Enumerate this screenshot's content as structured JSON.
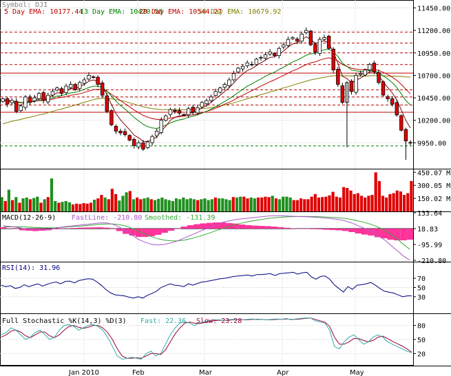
{
  "chart_data": [
    {
      "type": "candlestick",
      "symbol": "Symbol: DJI",
      "legend": [
        {
          "label": "5 Day EMA: 10177.44",
          "color": "#c00000"
        },
        {
          "label": "13 Day EMA: 10420.58",
          "color": "#008000"
        },
        {
          "label": "20 Day EMA: 10544.27",
          "color": "#c00000"
        },
        {
          "label": "50 Day EMA: 10679.92",
          "color": "#808000"
        }
      ],
      "y_ticks": [
        "11450.00",
        "11200.00",
        "10950.00",
        "10700.00",
        "10450.00",
        "10200.00",
        "9950.00"
      ],
      "ylim": [
        9700,
        11500
      ],
      "x_labels": [
        "Jan 2010",
        "Feb",
        "Mar",
        "Apr",
        "May"
      ],
      "support_resistance_red_solid": [
        10725,
        10290
      ],
      "support_resistance_red_dashed": [
        11180,
        11060,
        10950,
        10820,
        10540,
        10460,
        10370
      ],
      "support_green_dashed": [
        9915
      ],
      "closes": [
        10440,
        10380,
        10420,
        10300,
        10360,
        10460,
        10400,
        10450,
        10500,
        10420,
        10480,
        10520,
        10560,
        10500,
        10580,
        10600,
        10540,
        10620,
        10650,
        10700,
        10680,
        10600,
        10480,
        10300,
        10150,
        10080,
        10060,
        10040,
        9980,
        9920,
        9950,
        9880,
        9960,
        10020,
        10080,
        10200,
        10250,
        10320,
        10300,
        10280,
        10260,
        10330,
        10290,
        10340,
        10400,
        10420,
        10460,
        10520,
        10560,
        10600,
        10650,
        10720,
        10780,
        10800,
        10840,
        10820,
        10880,
        10900,
        10930,
        10960,
        10920,
        11000,
        11040,
        11100,
        11120,
        11080,
        11160,
        11200,
        11040,
        10960,
        11100,
        11120,
        11000,
        10760,
        10600,
        10400,
        10620,
        10520,
        10700,
        10720,
        10760,
        10820,
        10740,
        10620,
        10480,
        10440,
        10380,
        10260,
        10090,
        9970,
        9950
      ],
      "ema5": [
        10430,
        10410,
        10410,
        10375,
        10370,
        10400,
        10400,
        10415,
        10445,
        10435,
        10450,
        10475,
        10505,
        10505,
        10530,
        10555,
        10550,
        10575,
        10600,
        10635,
        10650,
        10630,
        10580,
        10485,
        10375,
        10275,
        10205,
        10150,
        10095,
        10035,
        10005,
        9965,
        9965,
        9985,
        10015,
        10080,
        10135,
        10200,
        10235,
        10250,
        10255,
        10280,
        10285,
        10305,
        10340,
        10365,
        10400,
        10440,
        10480,
        10520,
        10565,
        10615,
        10670,
        10715,
        10755,
        10775,
        10810,
        10840,
        10870,
        10900,
        10905,
        10935,
        10970,
        11015,
        11050,
        11060,
        11095,
        11130,
        11100,
        11055,
        11070,
        11085,
        11055,
        10955,
        10835,
        10690,
        10665,
        10615,
        10645,
        10670,
        10700,
        10740,
        10740,
        10700,
        10625,
        10565,
        10505,
        10425,
        10315,
        10200,
        10115
      ],
      "ema13": [
        10430,
        10420,
        10420,
        10400,
        10395,
        10405,
        10405,
        10410,
        10425,
        10425,
        10435,
        10450,
        10470,
        10475,
        10490,
        10505,
        10510,
        10525,
        10545,
        10565,
        10580,
        10580,
        10565,
        10525,
        10470,
        10415,
        10365,
        10325,
        10280,
        10230,
        10195,
        10155,
        10130,
        10115,
        10110,
        10125,
        10145,
        10170,
        10190,
        10205,
        10215,
        10235,
        10245,
        10260,
        10280,
        10300,
        10325,
        10350,
        10380,
        10410,
        10440,
        10475,
        10510,
        10545,
        10580,
        10605,
        10635,
        10660,
        10690,
        10715,
        10735,
        10765,
        10790,
        10820,
        10850,
        10870,
        10895,
        10925,
        10940,
        10945,
        10965,
        10985,
        10990,
        10960,
        10910,
        10835,
        10800,
        10760,
        10750,
        10745,
        10745,
        10755,
        10750,
        10730,
        10695,
        10660,
        10620,
        10565,
        10495,
        10420,
        10370
      ],
      "ema20": [
        10420,
        10415,
        10415,
        10405,
        10400,
        10405,
        10405,
        10410,
        10420,
        10420,
        10425,
        10435,
        10450,
        10455,
        10465,
        10480,
        10485,
        10495,
        10510,
        10525,
        10540,
        10545,
        10540,
        10520,
        10490,
        10455,
        10420,
        10385,
        10350,
        10315,
        10285,
        10255,
        10235,
        10220,
        10210,
        10210,
        10215,
        10225,
        10235,
        10240,
        10245,
        10255,
        10260,
        10270,
        10285,
        10300,
        10315,
        10335,
        10355,
        10380,
        10400,
        10425,
        10455,
        10480,
        10505,
        10530,
        10555,
        10580,
        10605,
        10630,
        10650,
        10675,
        10700,
        10725,
        10750,
        10770,
        10795,
        10820,
        10840,
        10850,
        10870,
        10885,
        10895,
        10885,
        10860,
        10820,
        10800,
        10780,
        10770,
        10765,
        10765,
        10770,
        10765,
        10755,
        10735,
        10710,
        10680,
        10645,
        10600,
        10545,
        10495
      ],
      "ema50": [
        10160,
        10175,
        10190,
        10200,
        10210,
        10225,
        10235,
        10245,
        10260,
        10270,
        10285,
        10300,
        10315,
        10325,
        10340,
        10355,
        10370,
        10385,
        10400,
        10415,
        10430,
        10440,
        10445,
        10445,
        10440,
        10430,
        10420,
        10410,
        10395,
        10380,
        10365,
        10350,
        10340,
        10330,
        10325,
        10320,
        10318,
        10318,
        10318,
        10318,
        10318,
        10320,
        10322,
        10325,
        10330,
        10335,
        10342,
        10350,
        10360,
        10370,
        10382,
        10395,
        10410,
        10425,
        10440,
        10455,
        10470,
        10485,
        10500,
        10515,
        10530,
        10545,
        10560,
        10575,
        10590,
        10605,
        10620,
        10635,
        10650,
        10660,
        10670,
        10680,
        10688,
        10695,
        10698,
        10696,
        10694,
        10692,
        10692,
        10692,
        10693,
        10695,
        10696,
        10696,
        10694,
        10692,
        10690,
        10688,
        10686,
        10683,
        10680
      ]
    },
    {
      "type": "bar",
      "name": "Volume",
      "y_ticks": [
        "450.07 M",
        "300.05 M",
        "150.02 M"
      ],
      "ylim": [
        0,
        460
      ],
      "values": [
        165,
        120,
        250,
        130,
        165,
        100,
        150,
        160,
        140,
        155,
        170,
        100,
        140,
        165,
        380,
        120,
        100,
        110,
        120,
        105,
        80,
        90,
        85,
        95,
        90,
        100,
        135,
        150,
        190,
        160,
        140,
        260,
        200,
        125,
        180,
        220,
        235,
        140,
        160,
        140,
        150,
        160,
        140,
        130,
        145,
        160,
        140,
        130,
        120,
        150,
        140,
        160,
        140,
        150,
        140,
        130,
        140,
        150,
        130,
        140,
        160,
        150,
        150,
        140,
        130,
        165,
        160,
        170,
        170,
        150,
        160,
        150,
        160,
        160,
        170,
        165,
        180,
        150,
        140,
        170,
        170,
        160,
        130,
        130,
        150,
        140,
        140,
        170,
        200,
        160,
        165,
        170,
        185,
        225,
        170,
        160,
        280,
        270,
        240,
        200,
        210,
        180,
        160,
        180,
        190,
        450,
        350,
        180,
        160,
        200,
        210,
        240,
        230,
        190,
        210,
        350
      ],
      "up": [
        true,
        false,
        true,
        false,
        true,
        false,
        true,
        true,
        false,
        true,
        true,
        false,
        true,
        false,
        true,
        true,
        false,
        true,
        true,
        true,
        false,
        false,
        false,
        false,
        false,
        false,
        true,
        false,
        false,
        true,
        false,
        false,
        false,
        true,
        true,
        true,
        false,
        true,
        false,
        false,
        true,
        true,
        false,
        true,
        true,
        true,
        true,
        true,
        true,
        true,
        true,
        true,
        true,
        true,
        true,
        false,
        true,
        true,
        true,
        true,
        false,
        true,
        true,
        true,
        true,
        false,
        true,
        true,
        false,
        false,
        true,
        true,
        false,
        false,
        false,
        false,
        true,
        false,
        true,
        true,
        true,
        true,
        false,
        false,
        false,
        false,
        false,
        false,
        false,
        false,
        false,
        false,
        false,
        false,
        false,
        false,
        false,
        false,
        false,
        false,
        false,
        false,
        false,
        false,
        false,
        false,
        false,
        false,
        false,
        false,
        false,
        false,
        false,
        false,
        false,
        false
      ]
    },
    {
      "type": "line",
      "name": "MACD",
      "header": "MACD(12-26-9)",
      "fast_label": "FastLine: -210.80",
      "smooth_label": "Smoothed: -131.39",
      "y_ticks": [
        "133.64",
        "18.83",
        "-95.99",
        "-210.80"
      ],
      "ylim": [
        -210.8,
        133.64
      ],
      "fast": [
        40,
        35,
        30,
        20,
        15,
        10,
        10,
        12,
        20,
        30,
        35,
        40,
        45,
        50,
        55,
        60,
        60,
        50,
        30,
        0,
        -30,
        -60,
        -80,
        -95,
        -100,
        -95,
        -85,
        -70,
        -50,
        -30,
        -10,
        10,
        30,
        50,
        65,
        75,
        85,
        90,
        95,
        100,
        105,
        110,
        112,
        112,
        110,
        108,
        106,
        105,
        102,
        100,
        95,
        90,
        85,
        75,
        60,
        40,
        20,
        0,
        -30,
        -60,
        -100,
        -140,
        -180,
        -210
      ],
      "smooth": [
        30,
        32,
        33,
        32,
        30,
        28,
        25,
        24,
        25,
        28,
        32,
        35,
        38,
        42,
        46,
        50,
        53,
        53,
        48,
        38,
        20,
        0,
        -20,
        -40,
        -55,
        -65,
        -70,
        -70,
        -65,
        -55,
        -42,
        -28,
        -12,
        5,
        20,
        35,
        48,
        60,
        70,
        78,
        85,
        92,
        97,
        101,
        104,
        106,
        107,
        107,
        106,
        105,
        103,
        100,
        97,
        92,
        85,
        75,
        63,
        50,
        32,
        10,
        -20,
        -55,
        -95,
        -131
      ],
      "hist": [
        10,
        3,
        -3,
        -12,
        -15,
        -18,
        -15,
        -12,
        -5,
        2,
        3,
        5,
        7,
        8,
        9,
        10,
        7,
        -3,
        -18,
        -38,
        -50,
        -60,
        -60,
        -55,
        -45,
        -30,
        -15,
        0,
        15,
        25,
        32,
        38,
        42,
        45,
        45,
        40,
        37,
        30,
        25,
        22,
        20,
        18,
        15,
        11,
        6,
        2,
        -1,
        -2,
        -4,
        -5,
        -8,
        -10,
        -12,
        -17,
        -25,
        -35,
        -43,
        -50,
        -62,
        -70,
        -80,
        -85,
        -85,
        -80
      ]
    },
    {
      "type": "line",
      "name": "RSI",
      "header": "RSI(14): 31.96",
      "y_ticks": [
        "70",
        "50",
        "30"
      ],
      "ylim": [
        0,
        100
      ],
      "values": [
        55,
        52,
        54,
        48,
        50,
        56,
        52,
        55,
        58,
        53,
        57,
        60,
        62,
        58,
        63,
        64,
        60,
        65,
        67,
        69,
        68,
        62,
        54,
        45,
        38,
        34,
        33,
        32,
        29,
        27,
        30,
        27,
        33,
        37,
        42,
        50,
        54,
        58,
        55,
        54,
        52,
        58,
        55,
        59,
        62,
        63,
        65,
        67,
        69,
        70,
        72,
        74,
        75,
        76,
        77,
        75,
        78,
        78,
        79,
        80,
        76,
        80,
        81,
        82,
        83,
        79,
        82,
        83,
        73,
        68,
        74,
        75,
        68,
        56,
        48,
        40,
        52,
        46,
        55,
        56,
        58,
        61,
        55,
        48,
        42,
        40,
        38,
        34,
        30,
        32,
        32
      ]
    },
    {
      "type": "line",
      "name": "Full Stochastic",
      "header": "Full Stochastic %K(14,3) %D(3)",
      "fast_label": "Fast: 22.36",
      "slow_label": "Slow: 23.28",
      "y_ticks": [
        "80",
        "50",
        "20"
      ],
      "ylim": [
        0,
        100
      ],
      "fast": [
        60,
        65,
        75,
        70,
        60,
        50,
        55,
        65,
        70,
        60,
        50,
        55,
        70,
        80,
        82,
        78,
        70,
        75,
        80,
        82,
        78,
        70,
        55,
        35,
        15,
        8,
        10,
        12,
        10,
        8,
        20,
        25,
        15,
        20,
        40,
        60,
        75,
        85,
        88,
        85,
        80,
        85,
        88,
        90,
        92,
        92,
        91,
        92,
        93,
        92,
        92,
        93,
        94,
        92,
        93,
        92,
        93,
        94,
        93,
        95,
        92,
        94,
        95,
        96,
        96,
        90,
        88,
        85,
        70,
        35,
        30,
        45,
        55,
        60,
        50,
        40,
        45,
        55,
        60,
        55,
        45,
        40,
        35,
        30,
        25,
        22
      ],
      "slow": [
        55,
        60,
        68,
        70,
        66,
        58,
        54,
        60,
        66,
        66,
        58,
        54,
        60,
        70,
        78,
        80,
        76,
        74,
        76,
        80,
        80,
        75,
        65,
        50,
        30,
        15,
        10,
        10,
        11,
        10,
        15,
        20,
        20,
        18,
        28,
        45,
        62,
        75,
        85,
        87,
        85,
        84,
        86,
        88,
        90,
        91,
        91,
        91,
        92,
        92,
        92,
        92,
        93,
        93,
        93,
        92,
        92,
        93,
        93,
        94,
        93,
        93,
        94,
        95,
        96,
        93,
        90,
        87,
        78,
        55,
        40,
        40,
        45,
        52,
        52,
        48,
        45,
        48,
        55,
        57,
        52,
        46,
        41,
        36,
        30,
        23
      ]
    }
  ]
}
